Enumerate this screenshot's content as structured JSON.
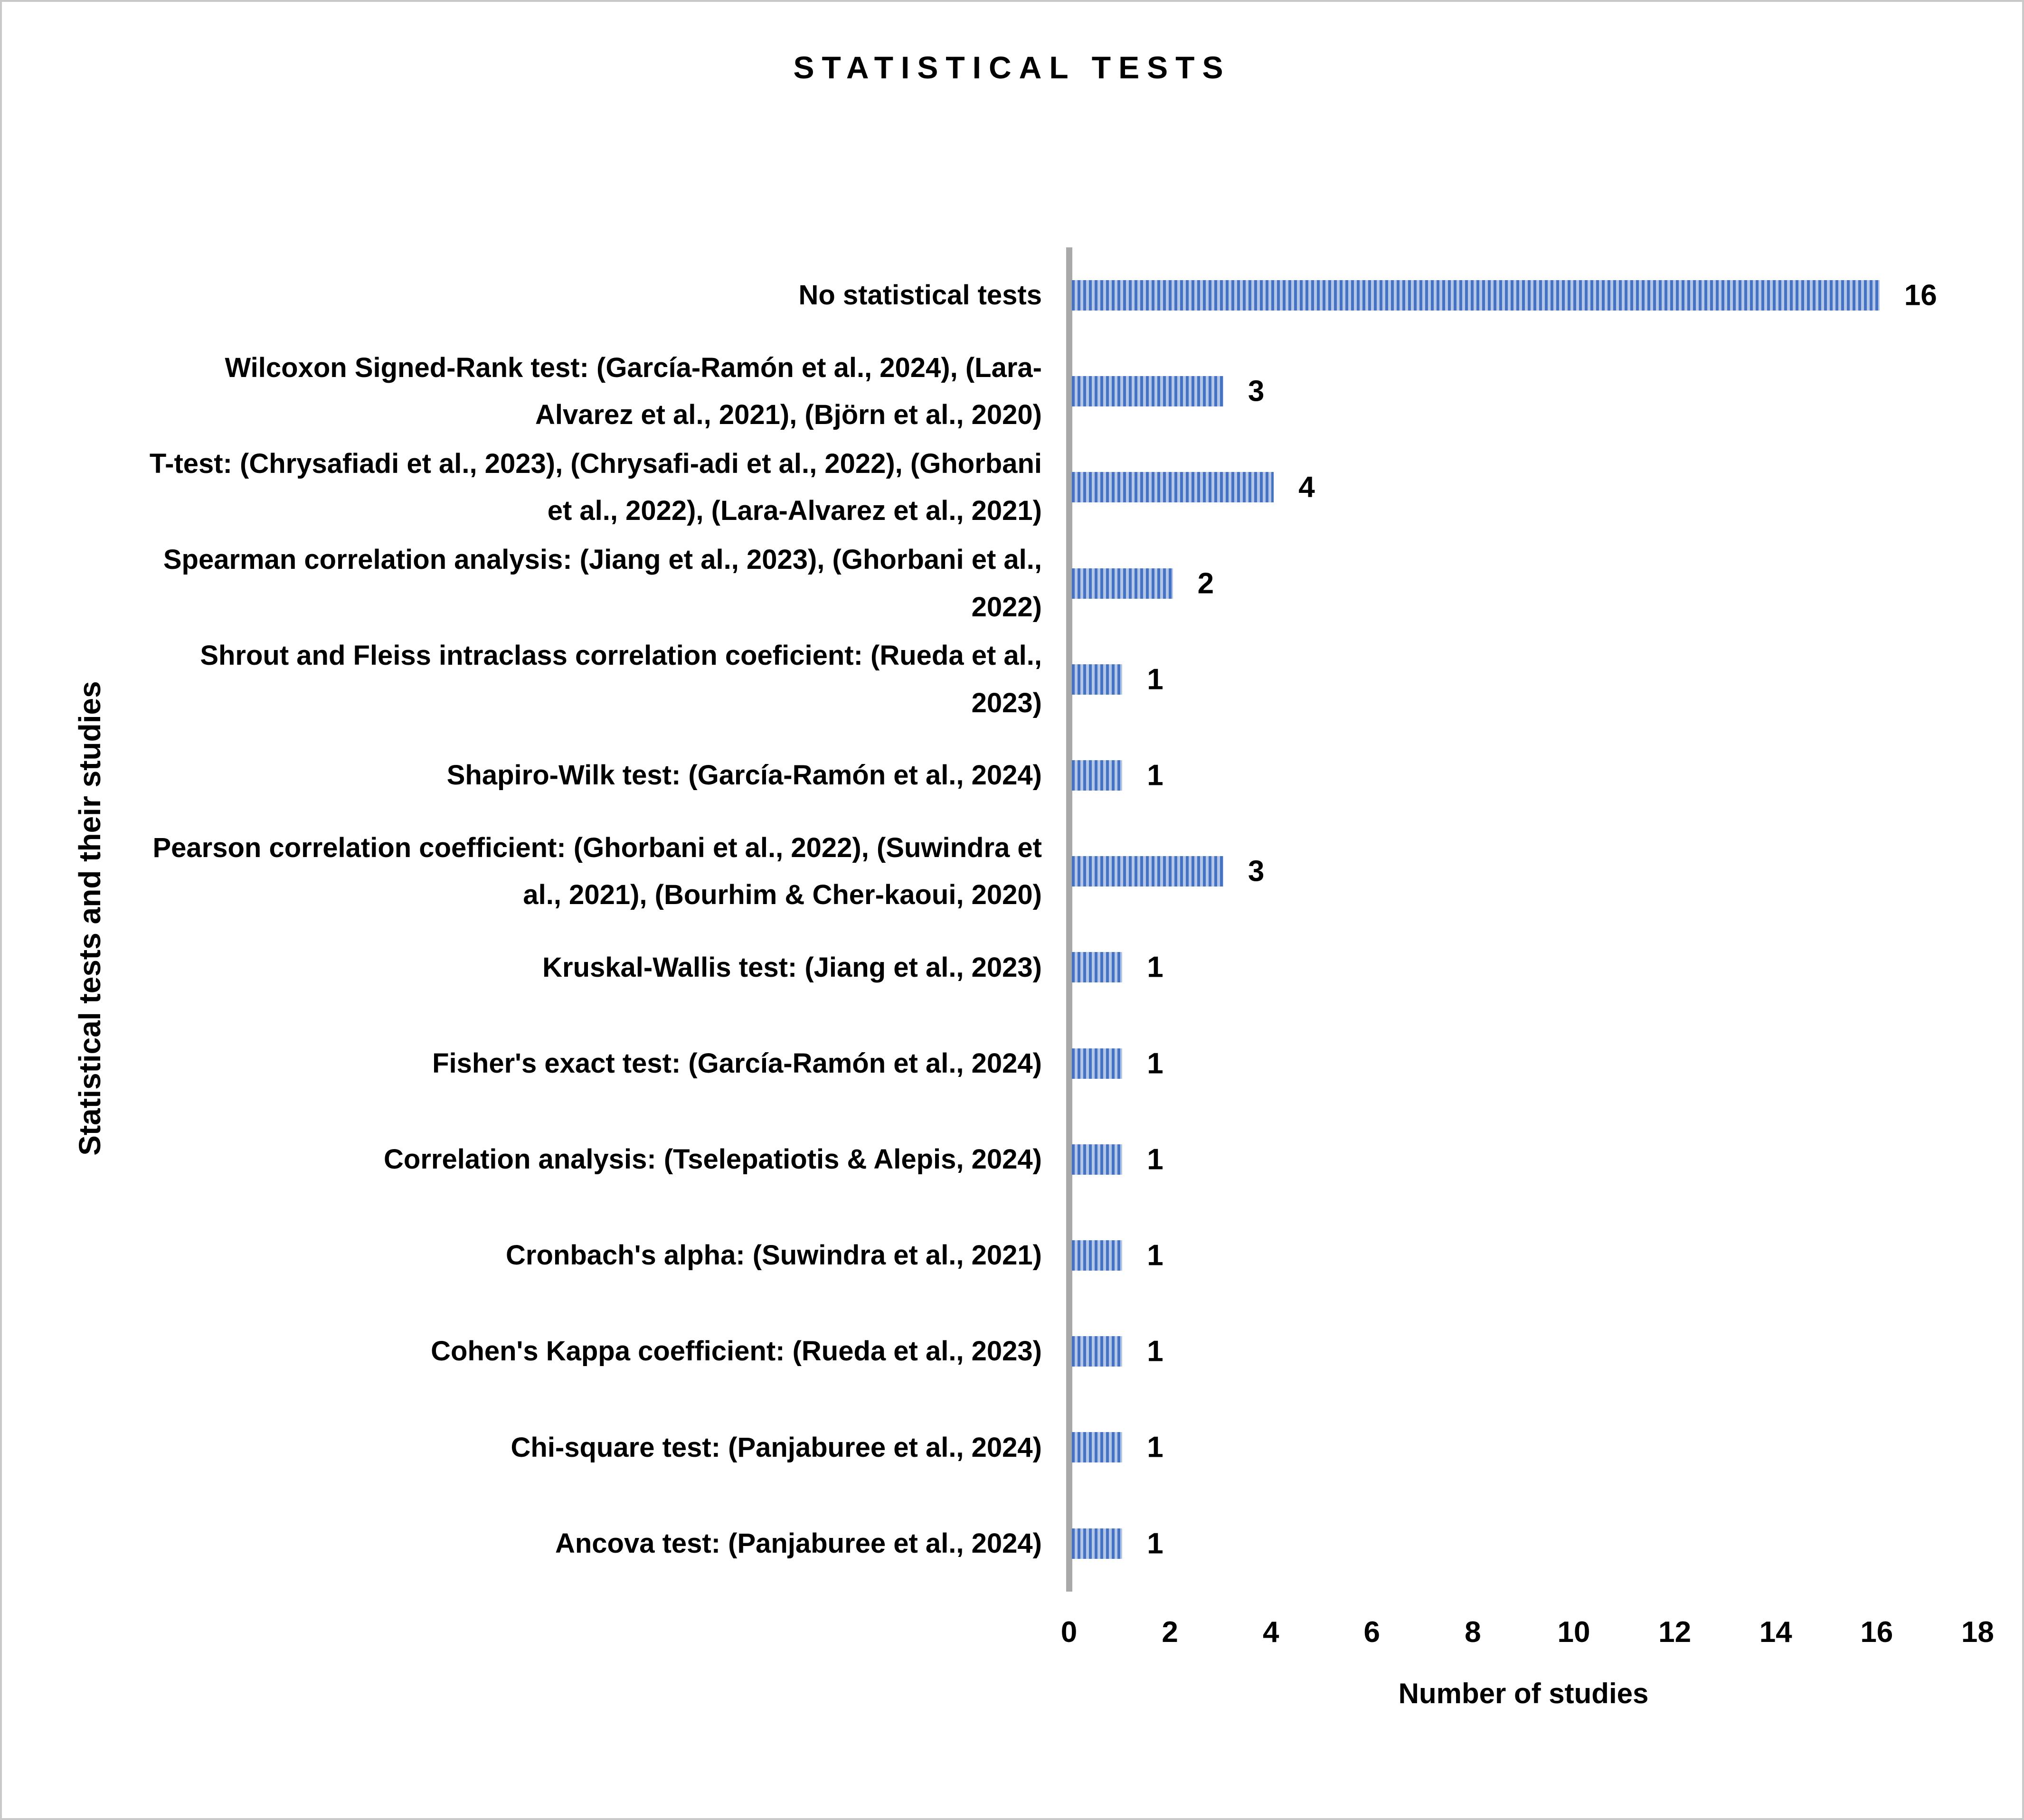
{
  "chart_data": {
    "type": "bar",
    "orientation": "horizontal",
    "title": "STATISTICAL TESTS",
    "xlabel": "Number of studies",
    "ylabel": "Statistical tests and their studies",
    "categories": [
      "No statistical tests",
      "Wilcoxon Signed-Rank test: (García-Ramón et al., 2024), (Lara-Alvarez et al., 2021), (Björn et al., 2020)",
      "T-test: (Chrysafiadi et al., 2023), (Chrysafi-adi et al., 2022), (Ghorbani et al., 2022), (Lara-Alvarez et al., 2021)",
      "Spearman correlation analysis: (Jiang et al., 2023), (Ghorbani et al., 2022)",
      "Shrout and Fleiss intraclass correlation coeficient: (Rueda et al., 2023)",
      "Shapiro-Wilk test: (García-Ramón et al., 2024)",
      "Pearson correlation coefficient: (Ghorbani et al., 2022), (Suwindra et al., 2021), (Bourhim & Cher-kaoui, 2020)",
      "Kruskal-Wallis test: (Jiang et al., 2023)",
      "Fisher's exact test: (García-Ramón et al., 2024)",
      "Correlation analysis: (Tselepatiotis & Alepis, 2024)",
      "Cronbach's alpha: (Suwindra et al., 2021)",
      "Cohen's Kappa coefficient:  (Rueda et al., 2023)",
      "Chi-square test: (Panjaburee et al., 2024)",
      "Ancova test: (Panjaburee et al., 2024)"
    ],
    "values": [
      16,
      3,
      4,
      2,
      1,
      1,
      3,
      1,
      1,
      1,
      1,
      1,
      1,
      1
    ],
    "xlim": [
      0,
      18
    ],
    "xticks": [
      0,
      2,
      4,
      6,
      8,
      10,
      12,
      14,
      16,
      18
    ],
    "grid": false,
    "legend": null,
    "data_labels_shown": true,
    "style": {
      "bar_pattern": "vertical-stripes",
      "bar_stripe_color": "#4472C4",
      "bar_background_color": "#B4C7E7",
      "axis_line_color": "#A9A9A9",
      "text_color": "#000000",
      "figure_border_color": "#C9C9C9"
    }
  }
}
